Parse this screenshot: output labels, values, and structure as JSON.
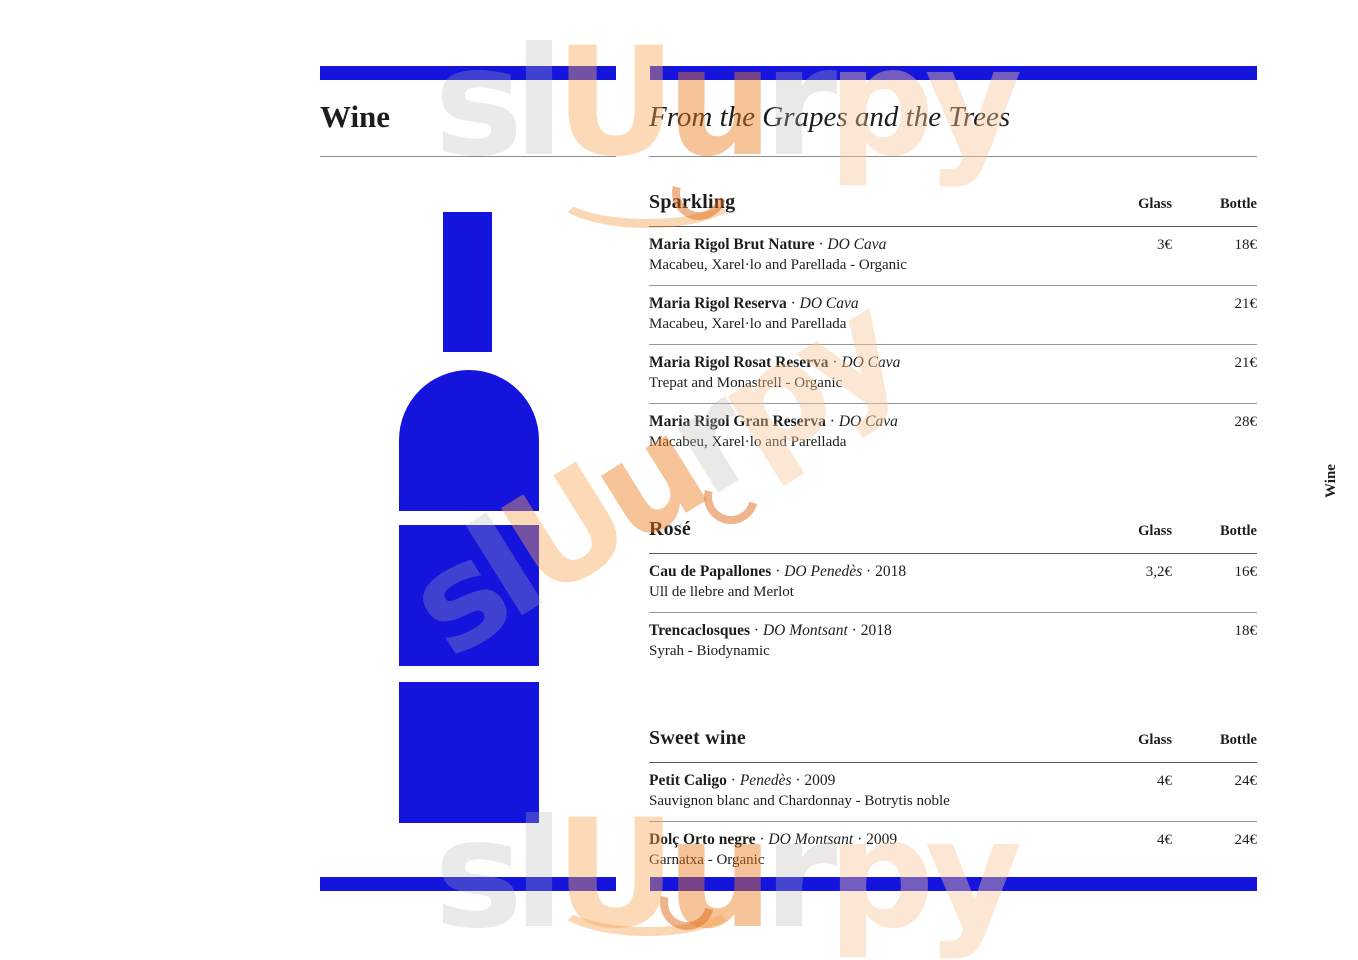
{
  "left_panel": {
    "title": "Wine"
  },
  "right_panel": {
    "title": "From the Grapes and the Trees",
    "side_label": "Wine"
  },
  "watermark": {
    "part_sl": "sl",
    "part_u1": "U",
    "part_u2": "u",
    "part_r": "r",
    "part_py": "py"
  },
  "colors": {
    "accent_blue": "#1414dd",
    "text": "#1d1d1b",
    "divider_gray": "#8c8c8c",
    "watermark_orange": "#ee7e22",
    "watermark_gray": "#b2b2b2"
  },
  "sections": [
    {
      "name": "Sparkling",
      "col_glass": "Glass",
      "col_bottle": "Bottle",
      "items": [
        {
          "name": "Maria Rigol Brut Nature",
          "sep1": " · ",
          "appellation": "DO Cava",
          "sep2": "",
          "year": "",
          "description": "Macabeu, Xarel·lo and Parellada - Organic",
          "glass": "3€",
          "bottle": "18€"
        },
        {
          "name": "Maria Rigol Reserva",
          "sep1": " · ",
          "appellation": "DO Cava",
          "sep2": "",
          "year": "",
          "description": "Macabeu, Xarel·lo and Parellada",
          "glass": "",
          "bottle": "21€"
        },
        {
          "name": "Maria Rigol Rosat Reserva",
          "sep1": " · ",
          "appellation": "DO Cava",
          "sep2": "",
          "year": "",
          "description": "Trepat and Monastrell - Organic",
          "glass": "",
          "bottle": "21€"
        },
        {
          "name": "Maria Rigol Gran Reserva",
          "sep1": " · ",
          "appellation": "DO Cava",
          "sep2": "",
          "year": "",
          "description": "Macabeu, Xarel·lo and Parellada",
          "glass": "",
          "bottle": "28€"
        }
      ]
    },
    {
      "name": "Rosé",
      "col_glass": "Glass",
      "col_bottle": "Bottle",
      "items": [
        {
          "name": "Cau de Papallones",
          "sep1": " · ",
          "appellation": "DO Penedès",
          "sep2": " · ",
          "year": "2018",
          "description": "Ull de llebre and Merlot",
          "glass": "3,2€",
          "bottle": "16€"
        },
        {
          "name": "Trencaclosques",
          "sep1": " · ",
          "appellation": "DO Montsant",
          "sep2": " · ",
          "year": "2018",
          "description": "Syrah - Biodynamic",
          "glass": "",
          "bottle": "18€"
        }
      ]
    },
    {
      "name": "Sweet wine",
      "col_glass": "Glass",
      "col_bottle": "Bottle",
      "items": [
        {
          "name": "Petit Caligo",
          "sep1": " · ",
          "appellation": "Penedès",
          "sep2": " · ",
          "year": "2009",
          "description": "Sauvignon blanc and Chardonnay - Botrytis noble",
          "glass": "4€",
          "bottle": "24€"
        },
        {
          "name": "Dolç Orto negre",
          "sep1": " · ",
          "appellation": "DO Montsant",
          "sep2": " · ",
          "year": "2009",
          "description": "Garnatxa - Organic",
          "glass": "4€",
          "bottle": "24€"
        }
      ]
    }
  ]
}
